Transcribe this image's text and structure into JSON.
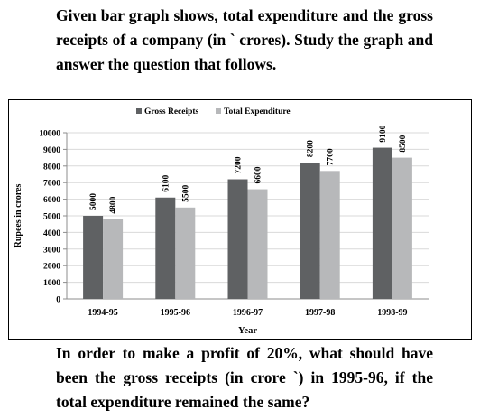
{
  "intro_text": "Given bar graph shows, total expenditure and the gross receipts of a company (in ` crores). Study the graph and answer the question that follows.",
  "question_text": "In order to make a profit of 20%, what should have been the gross receipts (in crore `) in 1995-96, if the total expenditure remained the same?",
  "colors": {
    "gross_receipts": "#5f6163",
    "total_expenditure": "#b7b8ba",
    "gridline": "#d9d9d9",
    "axis": "#8c8c8c"
  },
  "chart_data": {
    "type": "bar",
    "categories": [
      "1994-95",
      "1995-96",
      "1996-97",
      "1997-98",
      "1998-99"
    ],
    "series": [
      {
        "name": "Gross Receipts",
        "values": [
          5000,
          6100,
          7200,
          8200,
          9100
        ]
      },
      {
        "name": "Total Expenditure",
        "values": [
          4800,
          5500,
          6600,
          7700,
          8500
        ]
      }
    ],
    "title": "",
    "xlabel": "Year",
    "ylabel": "Rupees in crores",
    "ylim": [
      0,
      10000
    ],
    "yticks": [
      0,
      1000,
      2000,
      3000,
      4000,
      5000,
      6000,
      7000,
      8000,
      9000,
      10000
    ],
    "grid": true,
    "legend": "top-center",
    "data_labels": true
  }
}
